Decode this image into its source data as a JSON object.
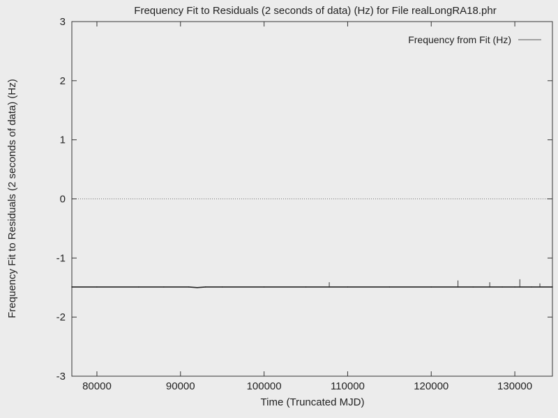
{
  "chart_data": {
    "type": "line",
    "title": "Frequency Fit to Residuals (2 seconds of data) (Hz) for File realLongRA18.phr",
    "xlabel": "Time (Truncated MJD)",
    "ylabel": "Frequency Fit to Residuals (2 seconds of data) (Hz)",
    "xlim": [
      77000,
      134500
    ],
    "ylim": [
      -3,
      3
    ],
    "xticks": [
      80000,
      90000,
      100000,
      110000,
      120000,
      130000
    ],
    "yticks": [
      -3,
      -2,
      -1,
      0,
      1,
      2,
      3
    ],
    "grid": false,
    "legend_position": "top-right",
    "zero_line": 0,
    "series": [
      {
        "name": "Frequency from Fit (Hz)",
        "color": "#222222",
        "x": [
          77000,
          80000,
          85000,
          88000,
          91000,
          92000,
          93000,
          95000,
          100000,
          105000,
          107800,
          110000,
          115000,
          120000,
          123200,
          125000,
          127000,
          128500,
          130000,
          130600,
          132000,
          134500
        ],
        "y": [
          -1.49,
          -1.49,
          -1.49,
          -1.49,
          -1.49,
          -1.5,
          -1.49,
          -1.49,
          -1.49,
          -1.49,
          -1.49,
          -1.49,
          -1.49,
          -1.49,
          -1.49,
          -1.49,
          -1.49,
          -1.49,
          -1.49,
          -1.49,
          -1.49,
          -1.49
        ]
      }
    ],
    "spikes": [
      {
        "x": 107800,
        "y": -1.41
      },
      {
        "x": 123200,
        "y": -1.38
      },
      {
        "x": 127000,
        "y": -1.41
      },
      {
        "x": 130600,
        "y": -1.36
      },
      {
        "x": 133000,
        "y": -1.43
      }
    ]
  }
}
